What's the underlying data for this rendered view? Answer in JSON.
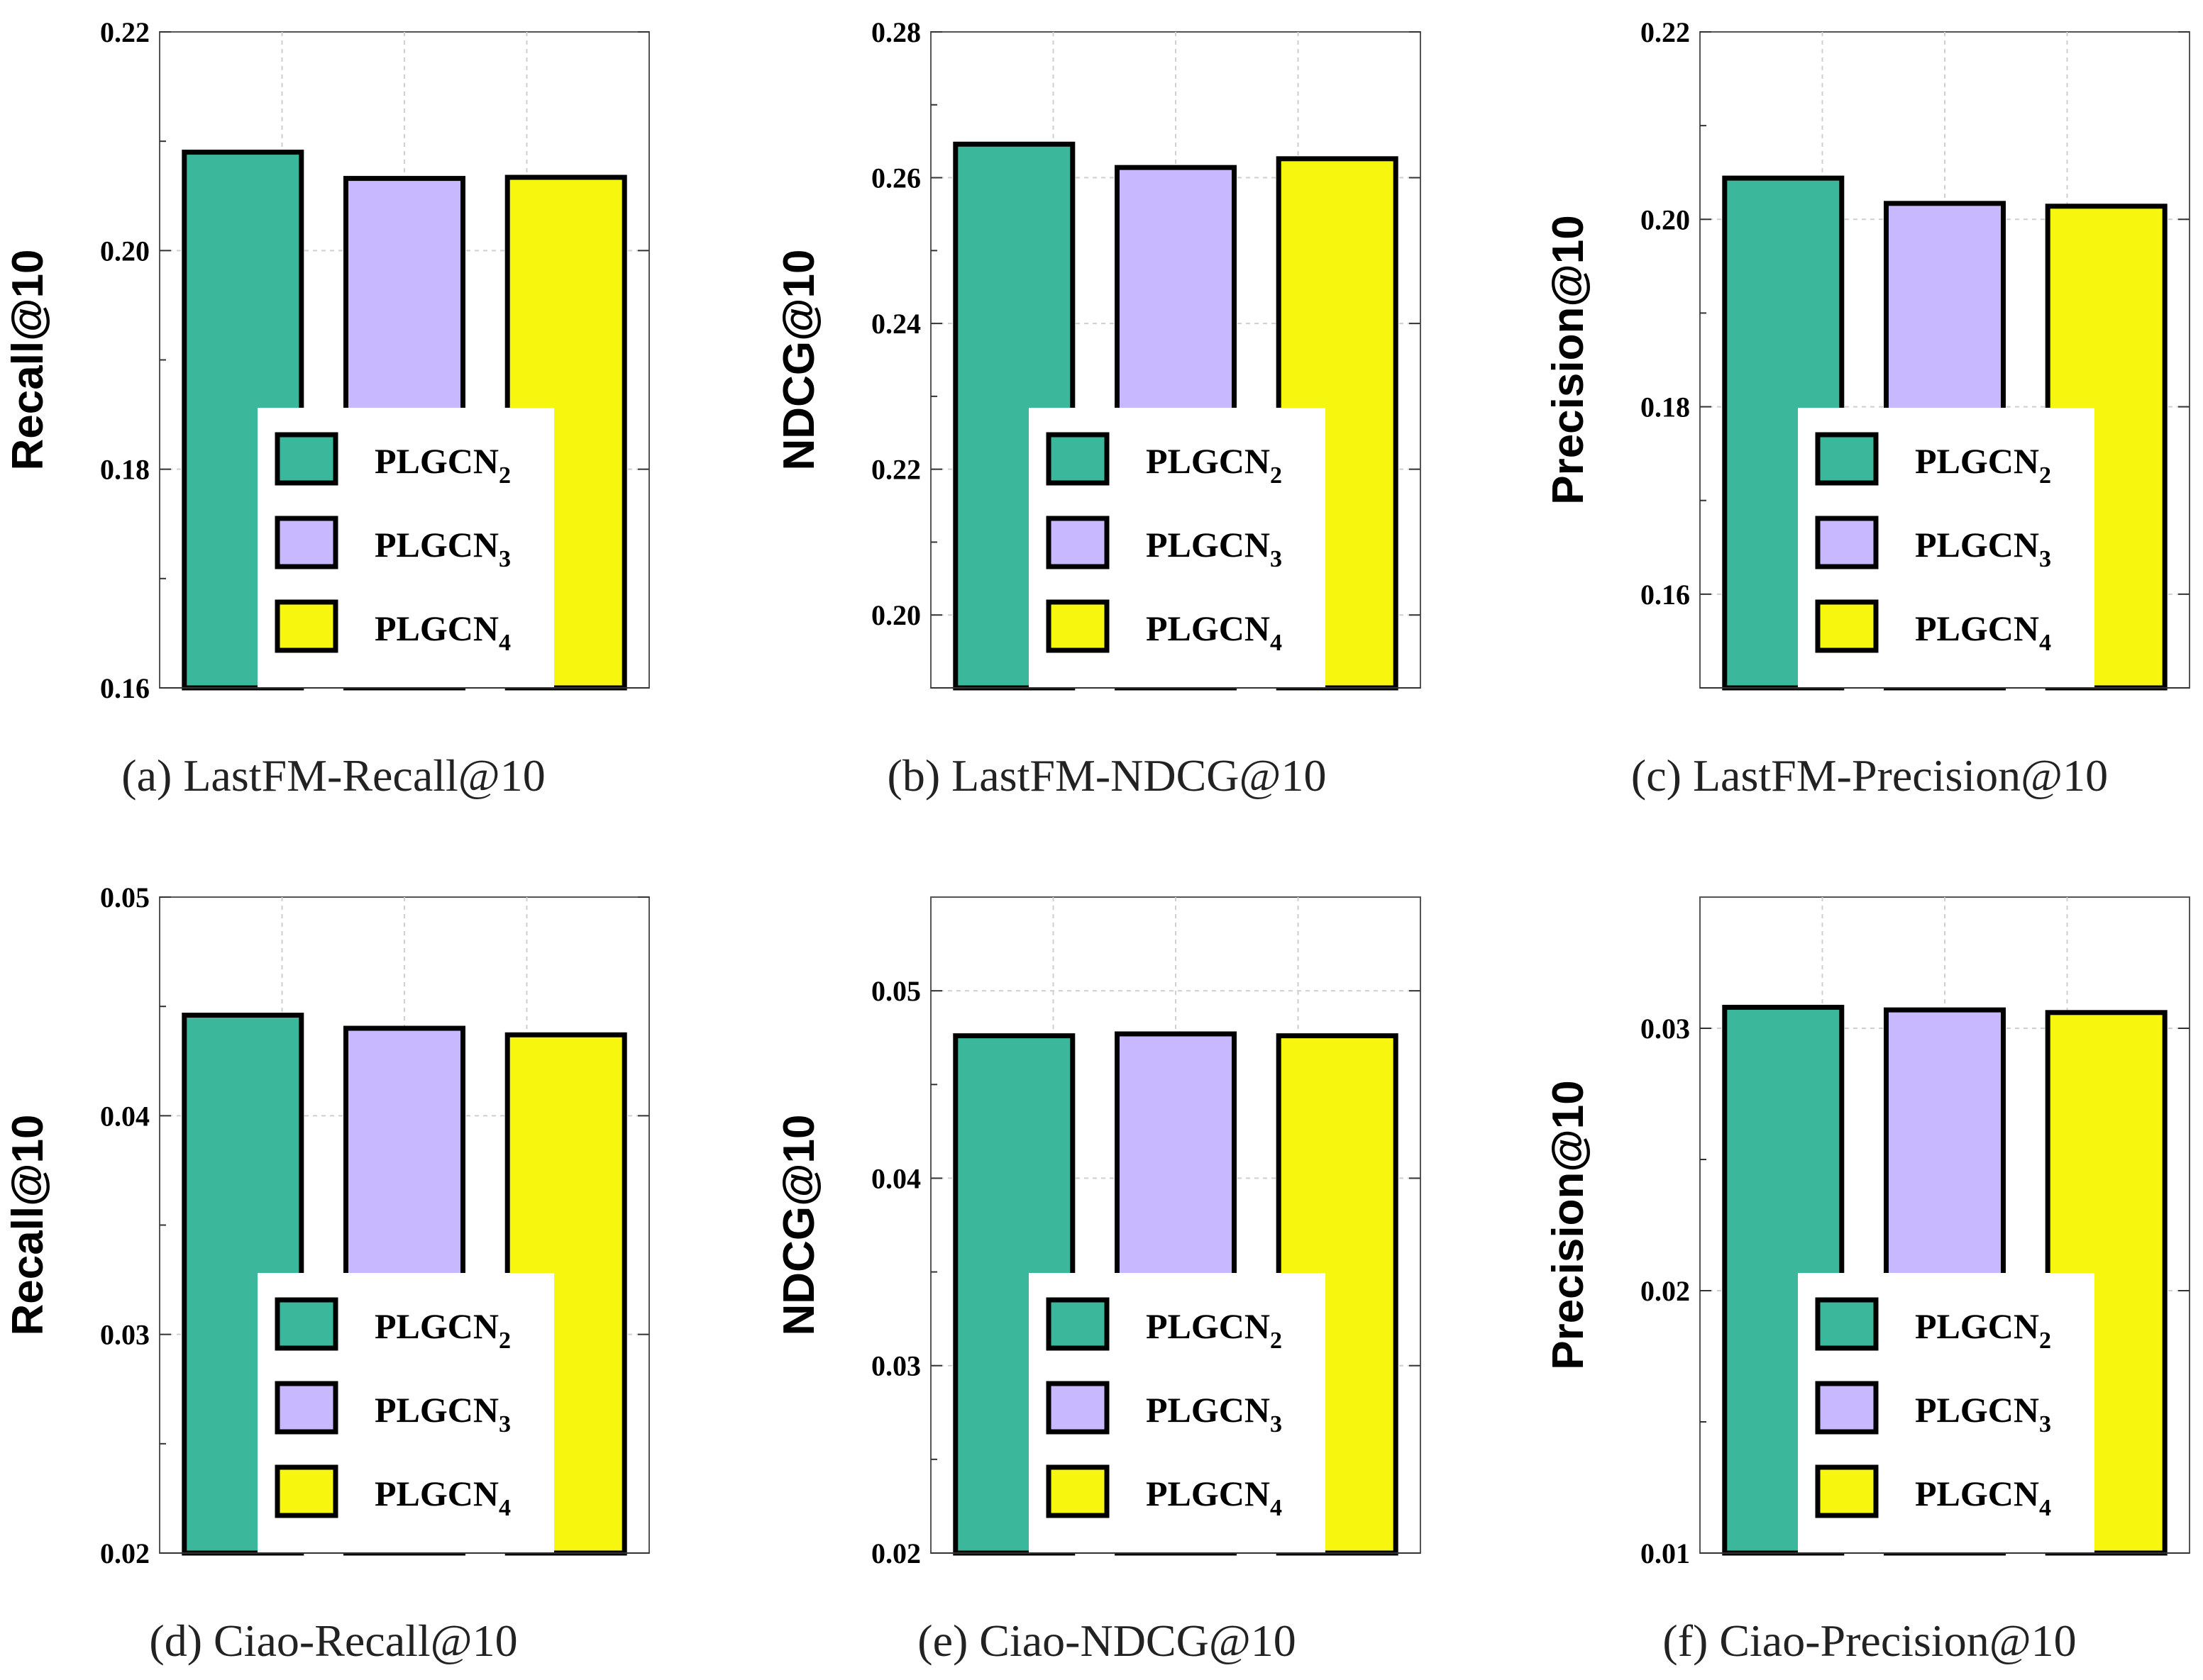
{
  "figure": {
    "series_colors": {
      "PLGCN_2": "#3bb89b",
      "PLGCN_3": "#c8b8ff",
      "PLGCN_4": "#f6f60f"
    }
  },
  "chart_data": [
    {
      "type": "bar",
      "caption": "(a) LastFM-Recall@10",
      "title": "",
      "xlabel": "",
      "ylabel": "Recall@10",
      "ylim": [
        0.16,
        0.22
      ],
      "yticks": [
        "0.16",
        "0.18",
        "0.20",
        "0.22"
      ],
      "categories": [
        "PLGCN2",
        "PLGCN3",
        "PLGCN4"
      ],
      "series": [
        {
          "name": "PLGCN",
          "sub": "2",
          "value": 0.209
        },
        {
          "name": "PLGCN",
          "sub": "3",
          "value": 0.2066
        },
        {
          "name": "PLGCN",
          "sub": "4",
          "value": 0.2067
        }
      ],
      "grid": true,
      "legend": "bottom-center"
    },
    {
      "type": "bar",
      "caption": "(b) LastFM-NDCG@10",
      "title": "",
      "xlabel": "",
      "ylabel": "NDCG@10",
      "ylim": [
        0.19,
        0.28
      ],
      "yticks": [
        "0.20",
        "0.22",
        "0.24",
        "0.26",
        "0.28"
      ],
      "categories": [
        "PLGCN2",
        "PLGCN3",
        "PLGCN4"
      ],
      "series": [
        {
          "name": "PLGCN",
          "sub": "2",
          "value": 0.2646
        },
        {
          "name": "PLGCN",
          "sub": "3",
          "value": 0.2614
        },
        {
          "name": "PLGCN",
          "sub": "4",
          "value": 0.2626
        }
      ],
      "grid": true,
      "legend": "bottom-center"
    },
    {
      "type": "bar",
      "caption": "(c) LastFM-Precision@10",
      "title": "",
      "xlabel": "",
      "ylabel": "Precision@10",
      "ylim": [
        0.15,
        0.22
      ],
      "yticks": [
        "0.16",
        "0.18",
        "0.20",
        "0.22"
      ],
      "categories": [
        "PLGCN2",
        "PLGCN3",
        "PLGCN4"
      ],
      "series": [
        {
          "name": "PLGCN",
          "sub": "2",
          "value": 0.2044
        },
        {
          "name": "PLGCN",
          "sub": "3",
          "value": 0.2017
        },
        {
          "name": "PLGCN",
          "sub": "4",
          "value": 0.2014
        }
      ],
      "grid": true,
      "legend": "bottom-center"
    },
    {
      "type": "bar",
      "caption": "(d) Ciao-Recall@10",
      "title": "",
      "xlabel": "",
      "ylabel": "Recall@10",
      "ylim": [
        0.02,
        0.05
      ],
      "yticks": [
        "0.02",
        "0.03",
        "0.04",
        "0.05"
      ],
      "categories": [
        "PLGCN2",
        "PLGCN3",
        "PLGCN4"
      ],
      "series": [
        {
          "name": "PLGCN",
          "sub": "2",
          "value": 0.0446
        },
        {
          "name": "PLGCN",
          "sub": "3",
          "value": 0.044
        },
        {
          "name": "PLGCN",
          "sub": "4",
          "value": 0.0437
        }
      ],
      "grid": true,
      "legend": "bottom-center"
    },
    {
      "type": "bar",
      "caption": "(e) Ciao-NDCG@10",
      "title": "",
      "xlabel": "",
      "ylabel": "NDCG@10",
      "ylim": [
        0.02,
        0.055
      ],
      "yticks": [
        "0.02",
        "0.03",
        "0.04",
        "0.05"
      ],
      "categories": [
        "PLGCN2",
        "PLGCN3",
        "PLGCN4"
      ],
      "series": [
        {
          "name": "PLGCN",
          "sub": "2",
          "value": 0.0476
        },
        {
          "name": "PLGCN",
          "sub": "3",
          "value": 0.0477
        },
        {
          "name": "PLGCN",
          "sub": "4",
          "value": 0.0476
        }
      ],
      "grid": true,
      "legend": "bottom-center"
    },
    {
      "type": "bar",
      "caption": "(f) Ciao-Precision@10",
      "title": "",
      "xlabel": "",
      "ylabel": "Precision@10",
      "ylim": [
        0.01,
        0.035
      ],
      "yticks": [
        "0.01",
        "0.02",
        "0.03"
      ],
      "categories": [
        "PLGCN2",
        "PLGCN3",
        "PLGCN4"
      ],
      "series": [
        {
          "name": "PLGCN",
          "sub": "2",
          "value": 0.0308
        },
        {
          "name": "PLGCN",
          "sub": "3",
          "value": 0.0307
        },
        {
          "name": "PLGCN",
          "sub": "4",
          "value": 0.0306
        }
      ],
      "grid": true,
      "legend": "bottom-center"
    }
  ]
}
